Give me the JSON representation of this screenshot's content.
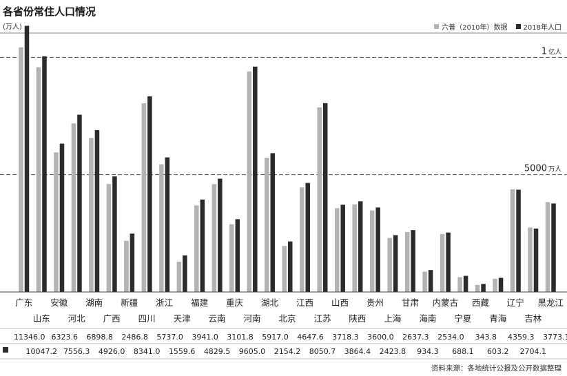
{
  "title": "各省份常住人口情况",
  "unit": "(万人)",
  "source": "资料来源：各地统计公报及公开数据整理",
  "colors": {
    "series_2010": "#b3b3b3",
    "series_2018": "#2b2b2b",
    "ref_line": "#555555"
  },
  "reference_lines": [
    {
      "value": 10000,
      "label": "1",
      "unit": "亿人"
    },
    {
      "value": 5000,
      "label": "5000",
      "unit": "万人"
    }
  ],
  "chart_data": {
    "type": "bar",
    "title": "各省份常住人口情况",
    "ylabel": "(万人)",
    "ylim": [
      0,
      11800
    ],
    "grid": false,
    "legend_position": "top-right",
    "categories": [
      "广东",
      "山东",
      "安徽",
      "河北",
      "湖南",
      "广西",
      "新疆",
      "四川",
      "浙江",
      "天津",
      "福建",
      "云南",
      "重庆",
      "河南",
      "湖北",
      "北京",
      "江西",
      "江苏",
      "山西",
      "陕西",
      "贵州",
      "上海",
      "甘肃",
      "海南",
      "内蒙古",
      "宁夏",
      "西藏",
      "青海",
      "辽宁",
      "吉林",
      "黑龙江"
    ],
    "series": [
      {
        "name": "六普（2010年）数据",
        "values": [
          10430,
          9579,
          5950,
          7185,
          6568,
          4603,
          2181,
          8042,
          5443,
          1294,
          3689,
          4597,
          2885,
          9402,
          5724,
          1961,
          4457,
          7866,
          3571,
          3733,
          3475,
          2302,
          2558,
          867,
          2471,
          630,
          300,
          563,
          4375,
          2746,
          3831
        ]
      },
      {
        "name": "2018年人口",
        "values": [
          11346.0,
          10047.2,
          6323.6,
          7556.3,
          6898.8,
          4926.0,
          2486.8,
          8341.0,
          5737.0,
          1559.6,
          3941.0,
          4829.5,
          3101.8,
          9605.0,
          5917.0,
          2154.2,
          4647.6,
          8050.7,
          3718.3,
          3864.4,
          3600.0,
          2423.8,
          2637.3,
          934.3,
          2534.0,
          688.1,
          343.8,
          603.2,
          4359.3,
          2704.1,
          3773.1
        ]
      }
    ],
    "value_rows": {
      "top": [
        "11346.0",
        "6323.6",
        "6898.8",
        "2486.8",
        "5737.0",
        "3941.0",
        "3101.8",
        "5917.0",
        "4647.6",
        "3718.3",
        "3600.0",
        "2637.3",
        "2534.0",
        "343.8",
        "4359.3",
        "3773.1"
      ],
      "bottom": [
        "10047.2",
        "7556.3",
        "4926.0",
        "8341.0",
        "1559.6",
        "4829.5",
        "9605.0",
        "2154.2",
        "8050.7",
        "3864.4",
        "2423.8",
        "934.3",
        "688.1",
        "603.2",
        "2704.1"
      ]
    }
  }
}
